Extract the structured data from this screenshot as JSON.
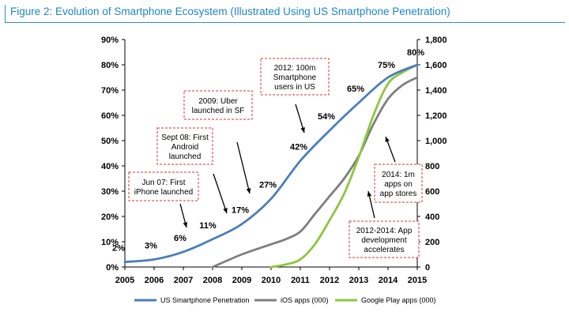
{
  "figure_title": "Figure 2: Evolution of Smartphone Ecosystem (Illustrated Using US Smartphone Penetration)",
  "colors": {
    "penetration": "#4a7ebb",
    "ios": "#7f7f7f",
    "google_play": "#8cc63f",
    "annotation_border": "#e03030",
    "title": "#1f86c8"
  },
  "chart_data": {
    "type": "line",
    "x": [
      2005,
      2006,
      2007,
      2008,
      2009,
      2010,
      2011,
      2012,
      2013,
      2014,
      2015
    ],
    "x_tick_labels": [
      "2005",
      "2006",
      "2007",
      "2008",
      "2009",
      "2010",
      "2011",
      "2012",
      "2013",
      "2014",
      "2015"
    ],
    "left_axis": {
      "range": [
        0,
        90
      ],
      "ticks": [
        0,
        10,
        20,
        30,
        40,
        50,
        60,
        70,
        80,
        90
      ],
      "tick_labels": [
        "0%",
        "10%",
        "20%",
        "30%",
        "40%",
        "50%",
        "60%",
        "70%",
        "80%",
        "90%"
      ]
    },
    "right_axis": {
      "range": [
        0,
        1800
      ],
      "ticks": [
        0,
        200,
        400,
        600,
        800,
        1000,
        1200,
        1400,
        1600,
        1800
      ],
      "tick_labels": [
        "0",
        "200",
        "400",
        "600",
        "800",
        "1,000",
        "1,200",
        "1,400",
        "1,600",
        "1,800"
      ]
    },
    "series": [
      {
        "name": "US Smartphone Penetration",
        "axis": "left",
        "x": [
          2005,
          2006,
          2007,
          2008,
          2009,
          2010,
          2011,
          2012,
          2013,
          2014,
          2015
        ],
        "values": [
          2,
          3,
          6,
          11,
          17,
          27,
          42,
          54,
          65,
          75,
          80
        ],
        "labels": [
          "2%",
          "3%",
          "6%",
          "11%",
          "17%",
          "27%",
          "42%",
          "54%",
          "65%",
          "75%",
          "80%"
        ]
      },
      {
        "name": "iOS apps (000)",
        "axis": "right",
        "x": [
          2008,
          2009,
          2010,
          2010.5,
          2011,
          2011.5,
          2012,
          2012.5,
          2013,
          2013.5,
          2014,
          2014.5,
          2015
        ],
        "values": [
          0,
          100,
          180,
          220,
          280,
          420,
          560,
          700,
          880,
          1130,
          1330,
          1440,
          1500
        ]
      },
      {
        "name": "Google Play apps (000)",
        "axis": "right",
        "x": [
          2010,
          2010.5,
          2011,
          2011.5,
          2012,
          2012.5,
          2013,
          2013.5,
          2014,
          2014.5,
          2015
        ],
        "values": [
          0,
          20,
          60,
          180,
          370,
          580,
          870,
          1200,
          1450,
          1540,
          1600
        ]
      }
    ],
    "annotations": [
      "Jun 07: First iPhone launched",
      "Sept 08: First Android launched",
      "2009: Uber launched in SF",
      "2012: 100m Smartphone users in US",
      "2014: 1m apps on app stores",
      "2012-2014: App development accelerates"
    ],
    "grid": false,
    "legend_position": "bottom"
  }
}
